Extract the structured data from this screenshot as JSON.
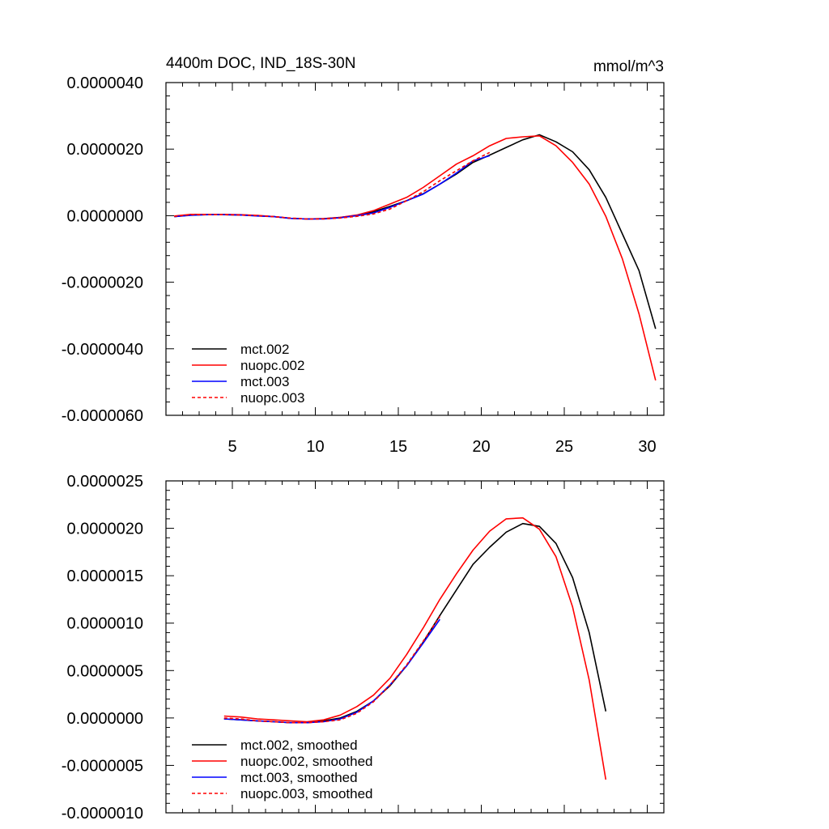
{
  "chart_data": [
    {
      "type": "line",
      "title": "4400m DOC, IND_18S-30N",
      "units": "mmol/m^3",
      "xlim": [
        1,
        31
      ],
      "ylim": [
        -6e-06,
        4e-06
      ],
      "xticks": [
        5,
        10,
        15,
        20,
        25,
        30
      ],
      "xtick_labels": [
        "5",
        "10",
        "15",
        "20",
        "25",
        "30"
      ],
      "yticks": [
        -6e-06,
        -4e-06,
        -2e-06,
        0,
        2e-06,
        4e-06
      ],
      "ytick_labels": [
        "-0.0000060",
        "-0.0000040",
        "-0.0000020",
        "0.0000000",
        "0.0000020",
        "0.0000040"
      ],
      "legend_position": "bottom-left",
      "series": [
        {
          "name": "mct.002",
          "color": "#000000",
          "dash": "solid",
          "x": [
            1.5,
            2.5,
            3.5,
            4.5,
            5.5,
            6.5,
            7.5,
            8.5,
            9.5,
            10.5,
            11.5,
            12.5,
            13.5,
            14.5,
            15.5,
            16.5,
            17.5,
            18.5,
            19.5,
            20.5,
            21.5,
            22.5,
            23.5,
            24.5,
            25.5,
            26.5,
            27.5,
            28.5,
            29.5,
            30.5
          ],
          "values": [
            -3e-08,
            2e-08,
            3e-08,
            3e-08,
            2e-08,
            0.0,
            -3e-08,
            -8e-08,
            -1e-07,
            -9e-08,
            -5e-08,
            1e-08,
            1.2e-07,
            2.8e-07,
            4.5e-07,
            6.6e-07,
            9.5e-07,
            1.25e-06,
            1.6e-06,
            1.82e-06,
            2.05e-06,
            2.28e-06,
            2.43e-06,
            2.22e-06,
            1.92e-06,
            1.38e-06,
            5.5e-07,
            -5.5e-07,
            -1.65e-06,
            -3.4e-06
          ]
        },
        {
          "name": "nuopc.002",
          "color": "#ff0000",
          "dash": "solid",
          "x": [
            1.5,
            2.5,
            3.5,
            4.5,
            5.5,
            6.5,
            7.5,
            8.5,
            9.5,
            10.5,
            11.5,
            12.5,
            13.5,
            14.5,
            15.5,
            16.5,
            17.5,
            18.5,
            19.5,
            20.5,
            21.5,
            22.5,
            23.5,
            24.5,
            25.5,
            26.5,
            27.5,
            28.5,
            29.5,
            30.5
          ],
          "values": [
            -1e-08,
            4e-08,
            4e-08,
            4e-08,
            3e-08,
            1e-08,
            -3e-08,
            -8e-08,
            -1e-07,
            -9e-08,
            -5e-08,
            2e-08,
            1.5e-07,
            3.5e-07,
            5.5e-07,
            8.5e-07,
            1.2e-06,
            1.55e-06,
            1.8e-06,
            2.1e-06,
            2.32e-06,
            2.37e-06,
            2.4e-06,
            2.1e-06,
            1.6e-06,
            9.5e-07,
            -2e-08,
            -1.3e-06,
            -2.95e-06,
            -4.95e-06
          ]
        },
        {
          "name": "mct.003",
          "color": "#0000ff",
          "dash": "solid",
          "x": [
            1.5,
            2.5,
            3.5,
            4.5,
            5.5,
            6.5,
            7.5,
            8.5,
            9.5,
            10.5,
            11.5,
            12.5,
            13.5,
            14.5,
            15.5,
            16.5,
            17.5,
            18.5,
            19.5,
            20.5
          ],
          "values": [
            -3e-08,
            1e-08,
            3e-08,
            3e-08,
            2e-08,
            -1e-08,
            -3e-08,
            -8e-08,
            -1e-07,
            -1e-07,
            -6e-08,
            0.0,
            8e-08,
            2.5e-07,
            4.5e-07,
            6.5e-07,
            9.5e-07,
            1.28e-06,
            1.65e-06,
            1.8e-06
          ]
        },
        {
          "name": "nuopc.003",
          "color": "#ff0000",
          "dash": "dashed",
          "x": [
            1.5,
            2.5,
            3.5,
            4.5,
            5.5,
            6.5,
            7.5,
            8.5,
            9.5,
            10.5,
            11.5,
            12.5,
            13.5,
            14.5,
            15.5,
            16.5,
            17.5,
            18.5,
            19.5,
            20.5
          ],
          "values": [
            -2e-08,
            3e-08,
            3e-08,
            3e-08,
            2e-08,
            0.0,
            -3e-08,
            -7e-08,
            -1e-07,
            -1e-07,
            -7e-08,
            -2e-08,
            5e-08,
            2e-07,
            4.5e-07,
            7.2e-07,
            1.05e-06,
            1.35e-06,
            1.65e-06,
            1.9e-06
          ]
        }
      ]
    },
    {
      "type": "line",
      "title": "",
      "units": "",
      "xlim": [
        1,
        31
      ],
      "ylim": [
        -1e-06,
        2.5e-06
      ],
      "xticks": [
        5,
        10,
        15,
        20,
        25,
        30
      ],
      "xtick_labels": [],
      "yticks": [
        -1e-06,
        -5e-07,
        0,
        5e-07,
        1e-06,
        1.5e-06,
        2e-06,
        2.5e-06
      ],
      "ytick_labels": [
        "-0.0000010",
        "-0.0000005",
        "0.0000000",
        "0.0000005",
        "0.0000010",
        "0.0000015",
        "0.0000020",
        "0.0000025"
      ],
      "legend_position": "bottom-left",
      "series": [
        {
          "name": "mct.002, smoothed",
          "color": "#000000",
          "dash": "solid",
          "x": [
            4.5,
            5.5,
            6.5,
            7.5,
            8.5,
            9.5,
            10.5,
            11.5,
            12.5,
            13.5,
            14.5,
            15.5,
            16.5,
            17.5,
            18.5,
            19.5,
            20.5,
            21.5,
            22.5,
            23.5,
            24.5,
            25.5,
            26.5,
            27.5
          ],
          "values": [
            -1e-08,
            -2e-08,
            -3e-08,
            -4e-08,
            -5e-08,
            -5e-08,
            -3e-08,
            0.0,
            7e-08,
            1.8e-07,
            3.4e-07,
            5.5e-07,
            8e-07,
            1.08e-06,
            1.35e-06,
            1.62e-06,
            1.8e-06,
            1.96e-06,
            2.05e-06,
            2.02e-06,
            1.84e-06,
            1.48e-06,
            9e-07,
            7e-08
          ]
        },
        {
          "name": "nuopc.002, smoothed",
          "color": "#ff0000",
          "dash": "solid",
          "x": [
            4.5,
            5.5,
            6.5,
            7.5,
            8.5,
            9.5,
            10.5,
            11.5,
            12.5,
            13.5,
            14.5,
            15.5,
            16.5,
            17.5,
            18.5,
            19.5,
            20.5,
            21.5,
            22.5,
            23.5,
            24.5,
            25.5,
            26.5,
            27.5
          ],
          "values": [
            2e-08,
            1e-08,
            -1e-08,
            -2e-08,
            -3e-08,
            -4e-08,
            -2e-08,
            3e-08,
            1.2e-07,
            2.4e-07,
            4.2e-07,
            6.7e-07,
            9.5e-07,
            1.25e-06,
            1.52e-06,
            1.77e-06,
            1.97e-06,
            2.1e-06,
            2.11e-06,
            1.99e-06,
            1.7e-06,
            1.17e-06,
            4e-07,
            -6.5e-07
          ]
        },
        {
          "name": "mct.003, smoothed",
          "color": "#0000ff",
          "dash": "solid",
          "x": [
            4.5,
            5.5,
            6.5,
            7.5,
            8.5,
            9.5,
            10.5,
            11.5,
            12.5,
            13.5,
            14.5,
            15.5,
            16.5,
            17.5
          ],
          "values": [
            -1e-08,
            -2e-08,
            -3e-08,
            -4e-08,
            -5e-08,
            -5e-08,
            -4e-08,
            -1e-08,
            6e-08,
            1.8e-07,
            3.5e-07,
            5.5e-07,
            7.9e-07,
            1.04e-06
          ]
        },
        {
          "name": "nuopc.003, smoothed",
          "color": "#ff0000",
          "dash": "dashed",
          "x": [
            4.5,
            5.5,
            6.5,
            7.5,
            8.5,
            9.5,
            10.5,
            11.5,
            12.5,
            13.5,
            14.5,
            15.5,
            16.5,
            17.5
          ],
          "values": [
            0.0,
            -1e-08,
            -3e-08,
            -4e-08,
            -5e-08,
            -5e-08,
            -4e-08,
            -2e-08,
            5e-08,
            1.7e-07,
            3.5e-07,
            5.6e-07,
            8.1e-07,
            1.07e-06
          ]
        }
      ]
    }
  ]
}
